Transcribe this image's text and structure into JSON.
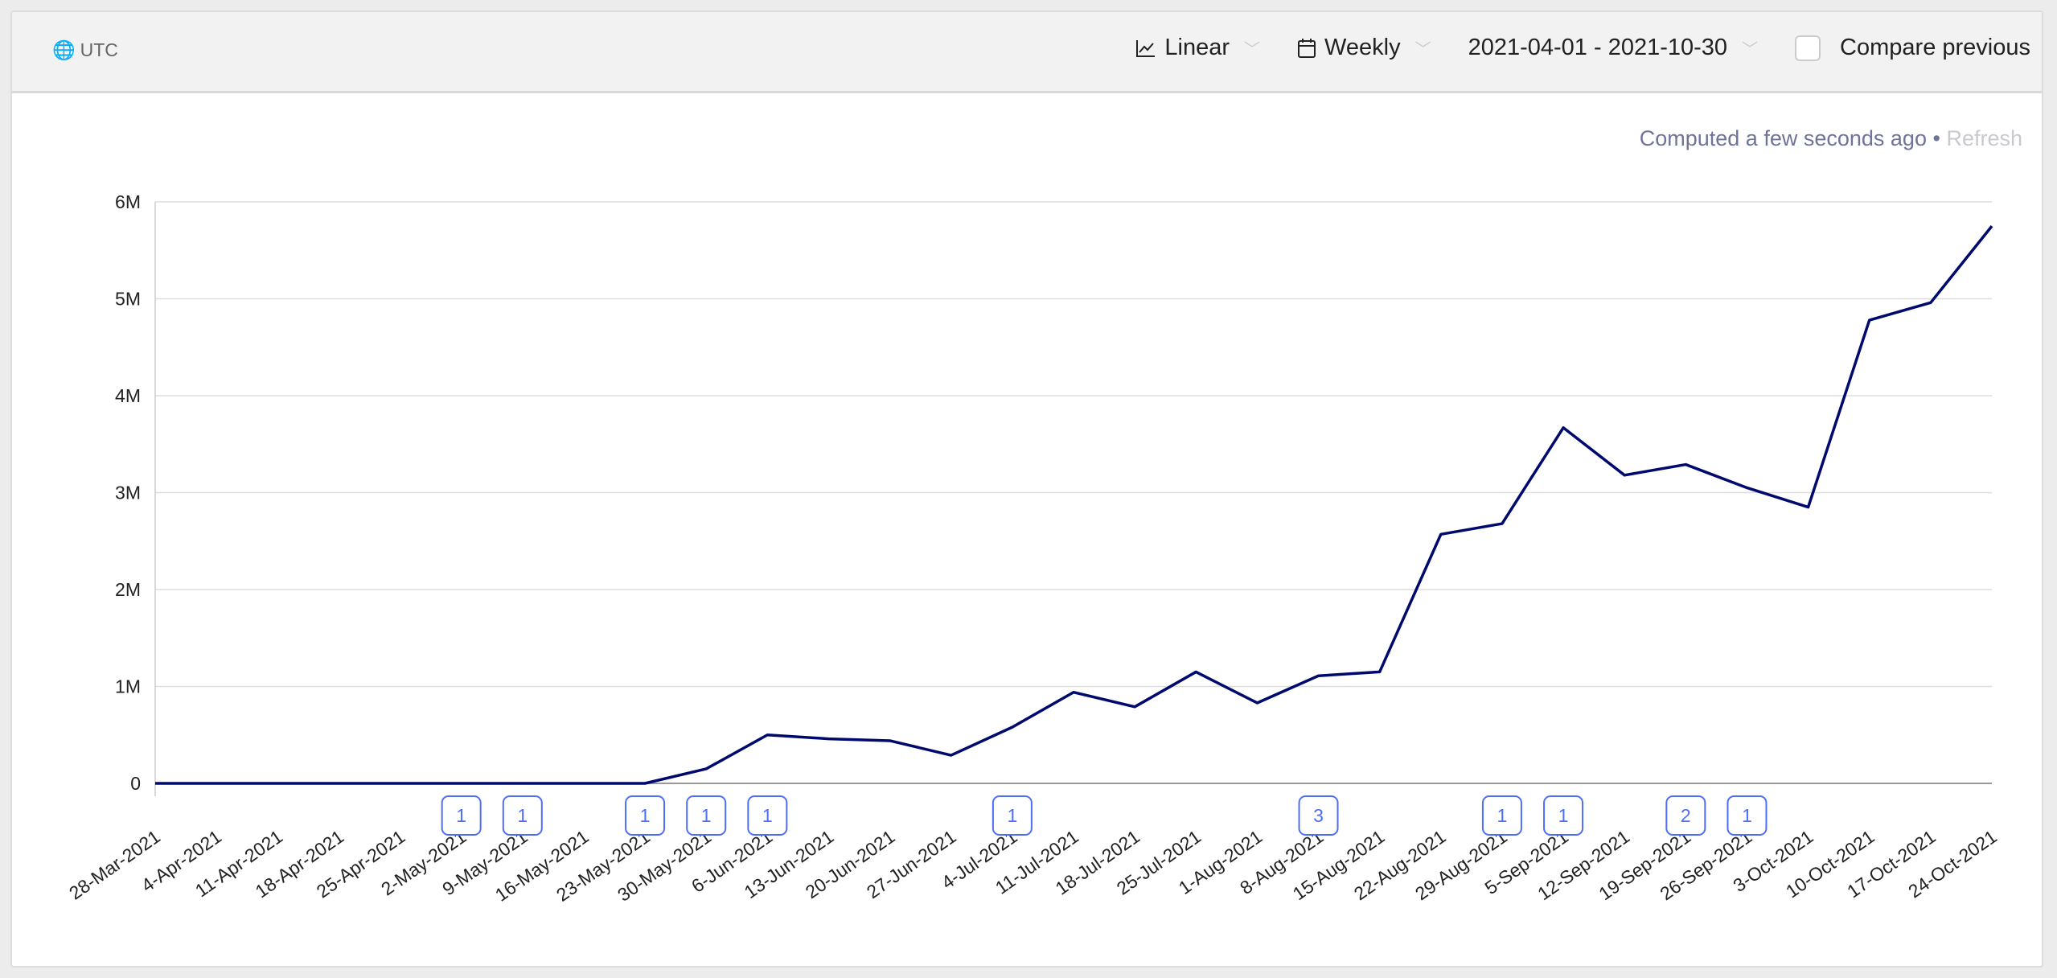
{
  "header": {
    "timezone": "UTC",
    "scale": "Linear",
    "interval": "Weekly",
    "date_range": "2021-04-01 - 2021-10-30",
    "compare_label": "Compare previous",
    "compare_checked": false
  },
  "status": {
    "computed": "Computed a few seconds ago",
    "separator": "•",
    "refresh": "Refresh"
  },
  "colors": {
    "line": "#000a6e",
    "annotation": "#4f6ef7",
    "grid": "#dddddd"
  },
  "chart_data": {
    "type": "line",
    "x": [
      "28-Mar-2021",
      "4-Apr-2021",
      "11-Apr-2021",
      "18-Apr-2021",
      "25-Apr-2021",
      "2-May-2021",
      "9-May-2021",
      "16-May-2021",
      "23-May-2021",
      "30-May-2021",
      "6-Jun-2021",
      "13-Jun-2021",
      "20-Jun-2021",
      "27-Jun-2021",
      "4-Jul-2021",
      "11-Jul-2021",
      "18-Jul-2021",
      "25-Jul-2021",
      "1-Aug-2021",
      "8-Aug-2021",
      "15-Aug-2021",
      "22-Aug-2021",
      "29-Aug-2021",
      "5-Sep-2021",
      "12-Sep-2021",
      "19-Sep-2021",
      "26-Sep-2021",
      "3-Oct-2021",
      "10-Oct-2021",
      "17-Oct-2021",
      "24-Oct-2021"
    ],
    "values": [
      0,
      0,
      0,
      0,
      0,
      0,
      0,
      0,
      0,
      150000,
      500000,
      460000,
      440000,
      290000,
      580000,
      940000,
      790000,
      1150000,
      830000,
      1110000,
      1150000,
      2570000,
      2680000,
      3670000,
      3180000,
      3290000,
      3050000,
      2850000,
      4780000,
      4960000,
      5750000
    ],
    "yticks": [
      {
        "v": 0,
        "label": "0"
      },
      {
        "v": 1000000,
        "label": "1M"
      },
      {
        "v": 2000000,
        "label": "2M"
      },
      {
        "v": 3000000,
        "label": "3M"
      },
      {
        "v": 4000000,
        "label": "4M"
      },
      {
        "v": 5000000,
        "label": "5M"
      },
      {
        "v": 6000000,
        "label": "6M"
      }
    ],
    "ylim": [
      0,
      6000000
    ],
    "grid": true,
    "annotations": [
      {
        "x": "2-May-2021",
        "count": "1"
      },
      {
        "x": "9-May-2021",
        "count": "1"
      },
      {
        "x": "23-May-2021",
        "count": "1"
      },
      {
        "x": "30-May-2021",
        "count": "1"
      },
      {
        "x": "6-Jun-2021",
        "count": "1"
      },
      {
        "x": "4-Jul-2021",
        "count": "1"
      },
      {
        "x": "8-Aug-2021",
        "count": "3"
      },
      {
        "x": "29-Aug-2021",
        "count": "1"
      },
      {
        "x": "5-Sep-2021",
        "count": "1"
      },
      {
        "x": "19-Sep-2021",
        "count": "2"
      },
      {
        "x": "26-Sep-2021",
        "count": "1"
      }
    ]
  }
}
